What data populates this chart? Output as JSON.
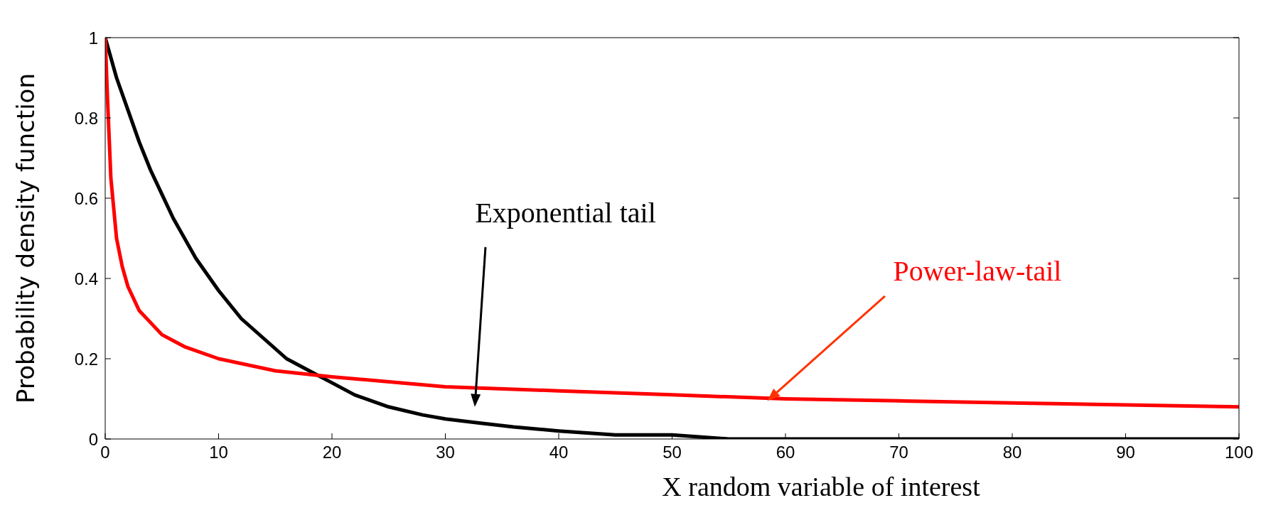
{
  "chart_data": {
    "type": "line",
    "xlabel": "X random variable of interest",
    "ylabel": "Probability density function",
    "xlim": [
      0,
      100
    ],
    "xticks": [
      0,
      10,
      20,
      30,
      40,
      50,
      60,
      70,
      80,
      90,
      100
    ],
    "ylim": [
      0,
      1
    ],
    "yticks": [
      0,
      0.2,
      0.4,
      0.6,
      0.8,
      1
    ],
    "series": [
      {
        "color": "#000000",
        "x": [
          0,
          1,
          2,
          3,
          4,
          5,
          6,
          8,
          10,
          12,
          14,
          16,
          18,
          20,
          22,
          25,
          28,
          30,
          33,
          36,
          40,
          45,
          50,
          55,
          60,
          70,
          80,
          90,
          100
        ],
        "values": [
          1,
          0.9,
          0.82,
          0.74,
          0.67,
          0.61,
          0.55,
          0.45,
          0.37,
          0.3,
          0.25,
          0.2,
          0.17,
          0.14,
          0.11,
          0.08,
          0.06,
          0.05,
          0.04,
          0.03,
          0.02,
          0.01,
          0.01,
          0,
          0,
          0,
          0,
          0,
          0
        ]
      },
      {
        "color": "#ff0000",
        "x": [
          0,
          0.2,
          0.5,
          1,
          1.5,
          2,
          3,
          4,
          5,
          7,
          10,
          15,
          20,
          30,
          40,
          50,
          60,
          70,
          80,
          90,
          100
        ],
        "values": [
          1,
          0.85,
          0.65,
          0.5,
          0.43,
          0.38,
          0.32,
          0.29,
          0.26,
          0.23,
          0.2,
          0.17,
          0.155,
          0.13,
          0.12,
          0.11,
          0.1,
          0.095,
          0.09,
          0.085,
          0.08
        ]
      }
    ],
    "annotations": [
      "Exponential tail",
      "Power-law-tail"
    ],
    "grid": false,
    "marker": "none",
    "line_style": "solid"
  }
}
